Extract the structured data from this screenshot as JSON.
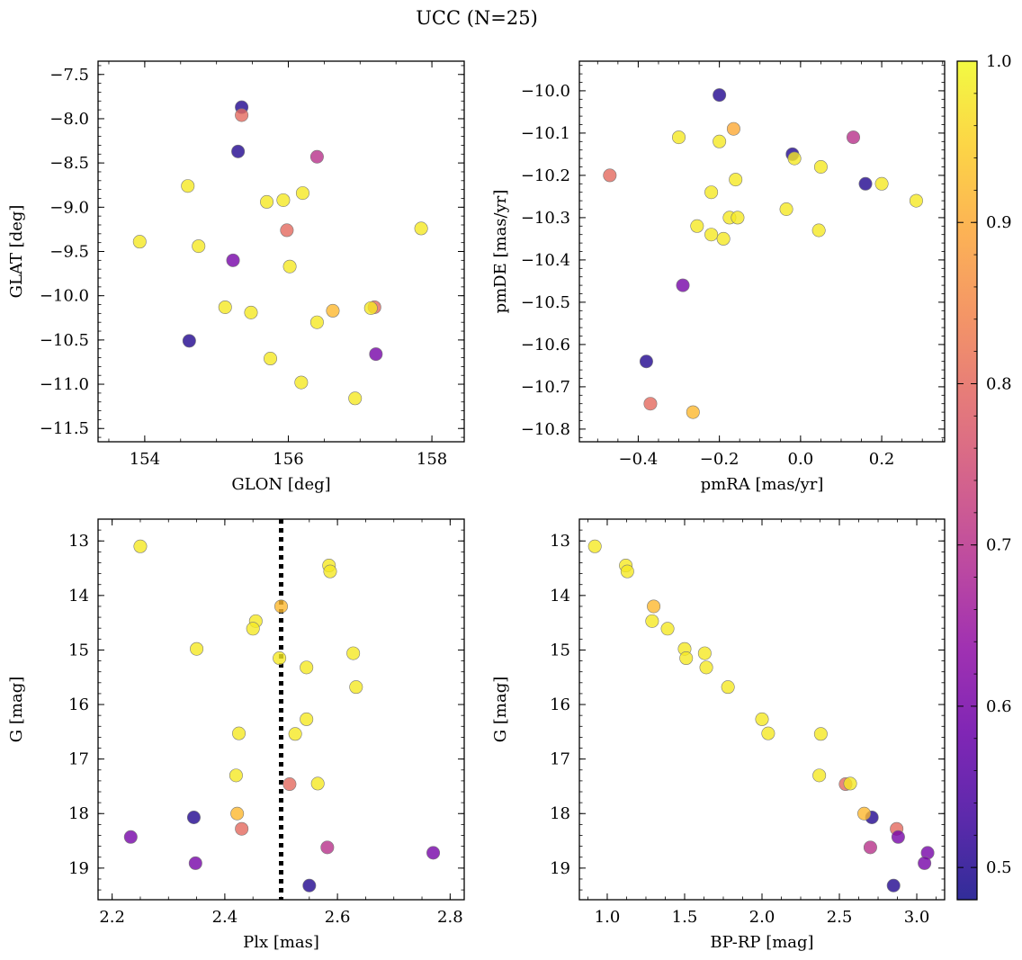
{
  "title": "UCC (N=25)",
  "colorbar": {
    "ticks": [
      0.5,
      0.6,
      0.7,
      0.8,
      0.9,
      1.0
    ],
    "tick_labels": [
      "0.5",
      "0.6",
      "0.7",
      "0.8",
      "0.9",
      "1.0"
    ],
    "range": [
      0.48,
      1.0
    ],
    "colormap": "plasma"
  },
  "chart_data": [
    {
      "type": "scatter",
      "xlabel": "GLON [deg]",
      "ylabel": "GLAT [deg]",
      "xlim": [
        153.35,
        158.45
      ],
      "ylim": [
        -11.65,
        -7.35
      ],
      "y_inverted": false,
      "xticks": [
        154,
        156,
        158
      ],
      "xtick_labels": [
        "154",
        "156",
        "158"
      ],
      "yticks": [
        -7.5,
        -8.0,
        -8.5,
        -9.0,
        -9.5,
        -10.0,
        -10.5,
        -11.0,
        -11.5
      ],
      "ytick_labels": [
        "−7.5",
        "−8.0",
        "−8.5",
        "−9.0",
        "−9.5",
        "−10.0",
        "−10.5",
        "−11.0",
        "−11.5"
      ],
      "points": [
        {
          "x": 155.35,
          "y": -7.87,
          "c": 0.5
        },
        {
          "x": 155.35,
          "y": -7.96,
          "c": 0.8
        },
        {
          "x": 155.3,
          "y": -8.37,
          "c": 0.5
        },
        {
          "x": 156.4,
          "y": -8.43,
          "c": 0.7
        },
        {
          "x": 154.6,
          "y": -8.76,
          "c": 0.98
        },
        {
          "x": 155.7,
          "y": -8.94,
          "c": 0.98
        },
        {
          "x": 155.93,
          "y": -8.92,
          "c": 0.98
        },
        {
          "x": 156.2,
          "y": -8.84,
          "c": 0.98
        },
        {
          "x": 155.98,
          "y": -9.26,
          "c": 0.8
        },
        {
          "x": 157.85,
          "y": -9.24,
          "c": 0.98
        },
        {
          "x": 153.93,
          "y": -9.39,
          "c": 0.98
        },
        {
          "x": 154.75,
          "y": -9.44,
          "c": 0.98
        },
        {
          "x": 155.23,
          "y": -9.6,
          "c": 0.6
        },
        {
          "x": 156.02,
          "y": -9.67,
          "c": 0.98
        },
        {
          "x": 155.12,
          "y": -10.13,
          "c": 0.98
        },
        {
          "x": 155.48,
          "y": -10.19,
          "c": 0.98
        },
        {
          "x": 156.4,
          "y": -10.3,
          "c": 0.98
        },
        {
          "x": 156.62,
          "y": -10.17,
          "c": 0.92
        },
        {
          "x": 157.2,
          "y": -10.13,
          "c": 0.8
        },
        {
          "x": 157.15,
          "y": -10.14,
          "c": 0.98
        },
        {
          "x": 154.62,
          "y": -10.51,
          "c": 0.5
        },
        {
          "x": 157.22,
          "y": -10.66,
          "c": 0.6
        },
        {
          "x": 155.75,
          "y": -10.71,
          "c": 0.98
        },
        {
          "x": 156.18,
          "y": -10.98,
          "c": 0.98
        },
        {
          "x": 156.93,
          "y": -11.16,
          "c": 0.98
        }
      ]
    },
    {
      "type": "scatter",
      "xlabel": "pmRA [mas/yr]",
      "ylabel": "pmDE [mas/yr]",
      "xlim": [
        -0.545,
        0.355
      ],
      "ylim": [
        -10.83,
        -9.93
      ],
      "y_inverted": false,
      "xticks": [
        -0.4,
        -0.2,
        0.0,
        0.2
      ],
      "xtick_labels": [
        "−0.4",
        "−0.2",
        "0.0",
        "0.2"
      ],
      "yticks": [
        -10.0,
        -10.1,
        -10.2,
        -10.3,
        -10.4,
        -10.5,
        -10.6,
        -10.7,
        -10.8
      ],
      "ytick_labels": [
        "−10.0",
        "−10.1",
        "−10.2",
        "−10.3",
        "−10.4",
        "−10.5",
        "−10.6",
        "−10.7",
        "−10.8"
      ],
      "points": [
        {
          "x": -0.2,
          "y": -10.01,
          "c": 0.5
        },
        {
          "x": -0.165,
          "y": -10.09,
          "c": 0.9
        },
        {
          "x": -0.3,
          "y": -10.11,
          "c": 0.98
        },
        {
          "x": -0.2,
          "y": -10.12,
          "c": 0.98
        },
        {
          "x": 0.13,
          "y": -10.11,
          "c": 0.7
        },
        {
          "x": -0.02,
          "y": -10.15,
          "c": 0.5
        },
        {
          "x": -0.015,
          "y": -10.16,
          "c": 0.98
        },
        {
          "x": 0.05,
          "y": -10.18,
          "c": 0.98
        },
        {
          "x": -0.47,
          "y": -10.2,
          "c": 0.8
        },
        {
          "x": -0.16,
          "y": -10.21,
          "c": 0.98
        },
        {
          "x": 0.16,
          "y": -10.22,
          "c": 0.5
        },
        {
          "x": 0.2,
          "y": -10.22,
          "c": 0.98
        },
        {
          "x": 0.285,
          "y": -10.26,
          "c": 0.98
        },
        {
          "x": -0.22,
          "y": -10.24,
          "c": 0.98
        },
        {
          "x": -0.035,
          "y": -10.28,
          "c": 0.98
        },
        {
          "x": -0.175,
          "y": -10.3,
          "c": 0.98
        },
        {
          "x": -0.155,
          "y": -10.3,
          "c": 0.98
        },
        {
          "x": -0.255,
          "y": -10.32,
          "c": 0.98
        },
        {
          "x": 0.045,
          "y": -10.33,
          "c": 0.98
        },
        {
          "x": -0.22,
          "y": -10.34,
          "c": 0.98
        },
        {
          "x": -0.19,
          "y": -10.35,
          "c": 0.98
        },
        {
          "x": -0.29,
          "y": -10.46,
          "c": 0.6
        },
        {
          "x": -0.38,
          "y": -10.64,
          "c": 0.5
        },
        {
          "x": -0.37,
          "y": -10.74,
          "c": 0.8
        },
        {
          "x": -0.265,
          "y": -10.76,
          "c": 0.92
        }
      ]
    },
    {
      "type": "scatter",
      "xlabel": "Plx [mas]",
      "ylabel": "G [mag]",
      "xlim": [
        2.175,
        2.825
      ],
      "ylim": [
        12.6,
        19.58
      ],
      "y_inverted": true,
      "xticks": [
        2.2,
        2.4,
        2.6,
        2.8
      ],
      "xtick_labels": [
        "2.2",
        "2.4",
        "2.6",
        "2.8"
      ],
      "yticks": [
        13,
        14,
        15,
        16,
        17,
        18,
        19
      ],
      "ytick_labels": [
        "13",
        "14",
        "15",
        "16",
        "17",
        "18",
        "19"
      ],
      "vline": {
        "x": 2.5,
        "style": "dotted"
      },
      "points": [
        {
          "x": 2.25,
          "y": 13.1,
          "c": 0.98
        },
        {
          "x": 2.585,
          "y": 13.45,
          "c": 0.98
        },
        {
          "x": 2.587,
          "y": 13.56,
          "c": 0.98
        },
        {
          "x": 2.5,
          "y": 14.2,
          "c": 0.92
        },
        {
          "x": 2.455,
          "y": 14.47,
          "c": 0.98
        },
        {
          "x": 2.45,
          "y": 14.61,
          "c": 0.98
        },
        {
          "x": 2.35,
          "y": 14.98,
          "c": 0.98
        },
        {
          "x": 2.628,
          "y": 15.06,
          "c": 0.98
        },
        {
          "x": 2.497,
          "y": 15.15,
          "c": 0.98
        },
        {
          "x": 2.545,
          "y": 15.32,
          "c": 0.98
        },
        {
          "x": 2.633,
          "y": 15.68,
          "c": 0.98
        },
        {
          "x": 2.545,
          "y": 16.27,
          "c": 0.98
        },
        {
          "x": 2.425,
          "y": 16.53,
          "c": 0.98
        },
        {
          "x": 2.525,
          "y": 16.54,
          "c": 0.98
        },
        {
          "x": 2.42,
          "y": 17.3,
          "c": 0.98
        },
        {
          "x": 2.515,
          "y": 17.46,
          "c": 0.8
        },
        {
          "x": 2.565,
          "y": 17.45,
          "c": 0.98
        },
        {
          "x": 2.345,
          "y": 18.07,
          "c": 0.5
        },
        {
          "x": 2.422,
          "y": 18.0,
          "c": 0.92
        },
        {
          "x": 2.43,
          "y": 18.28,
          "c": 0.8
        },
        {
          "x": 2.233,
          "y": 18.43,
          "c": 0.6
        },
        {
          "x": 2.582,
          "y": 18.62,
          "c": 0.7
        },
        {
          "x": 2.77,
          "y": 18.72,
          "c": 0.6
        },
        {
          "x": 2.348,
          "y": 18.91,
          "c": 0.6
        },
        {
          "x": 2.55,
          "y": 19.32,
          "c": 0.5
        }
      ]
    },
    {
      "type": "scatter",
      "xlabel": "BP-RP [mag]",
      "ylabel": "G [mag]",
      "xlim": [
        0.82,
        3.18
      ],
      "ylim": [
        12.6,
        19.58
      ],
      "y_inverted": true,
      "xticks": [
        1.0,
        1.5,
        2.0,
        2.5,
        3.0
      ],
      "xtick_labels": [
        "1.0",
        "1.5",
        "2.0",
        "2.5",
        "3.0"
      ],
      "yticks": [
        13,
        14,
        15,
        16,
        17,
        18,
        19
      ],
      "ytick_labels": [
        "13",
        "14",
        "15",
        "16",
        "17",
        "18",
        "19"
      ],
      "points": [
        {
          "x": 0.92,
          "y": 13.1,
          "c": 0.98
        },
        {
          "x": 1.12,
          "y": 13.45,
          "c": 0.98
        },
        {
          "x": 1.13,
          "y": 13.56,
          "c": 0.98
        },
        {
          "x": 1.3,
          "y": 14.2,
          "c": 0.92
        },
        {
          "x": 1.29,
          "y": 14.47,
          "c": 0.98
        },
        {
          "x": 1.39,
          "y": 14.61,
          "c": 0.98
        },
        {
          "x": 1.5,
          "y": 14.98,
          "c": 0.98
        },
        {
          "x": 1.51,
          "y": 15.15,
          "c": 0.98
        },
        {
          "x": 1.63,
          "y": 15.06,
          "c": 0.98
        },
        {
          "x": 1.64,
          "y": 15.32,
          "c": 0.98
        },
        {
          "x": 1.78,
          "y": 15.68,
          "c": 0.98
        },
        {
          "x": 2.0,
          "y": 16.27,
          "c": 0.98
        },
        {
          "x": 2.04,
          "y": 16.53,
          "c": 0.98
        },
        {
          "x": 2.38,
          "y": 16.54,
          "c": 0.98
        },
        {
          "x": 2.37,
          "y": 17.3,
          "c": 0.98
        },
        {
          "x": 2.54,
          "y": 17.46,
          "c": 0.8
        },
        {
          "x": 2.57,
          "y": 17.45,
          "c": 0.98
        },
        {
          "x": 2.71,
          "y": 18.07,
          "c": 0.5
        },
        {
          "x": 2.66,
          "y": 18.0,
          "c": 0.92
        },
        {
          "x": 2.87,
          "y": 18.28,
          "c": 0.8
        },
        {
          "x": 2.88,
          "y": 18.43,
          "c": 0.6
        },
        {
          "x": 2.7,
          "y": 18.62,
          "c": 0.7
        },
        {
          "x": 3.07,
          "y": 18.72,
          "c": 0.6
        },
        {
          "x": 3.05,
          "y": 18.91,
          "c": 0.6
        },
        {
          "x": 2.85,
          "y": 19.32,
          "c": 0.5
        }
      ]
    }
  ]
}
